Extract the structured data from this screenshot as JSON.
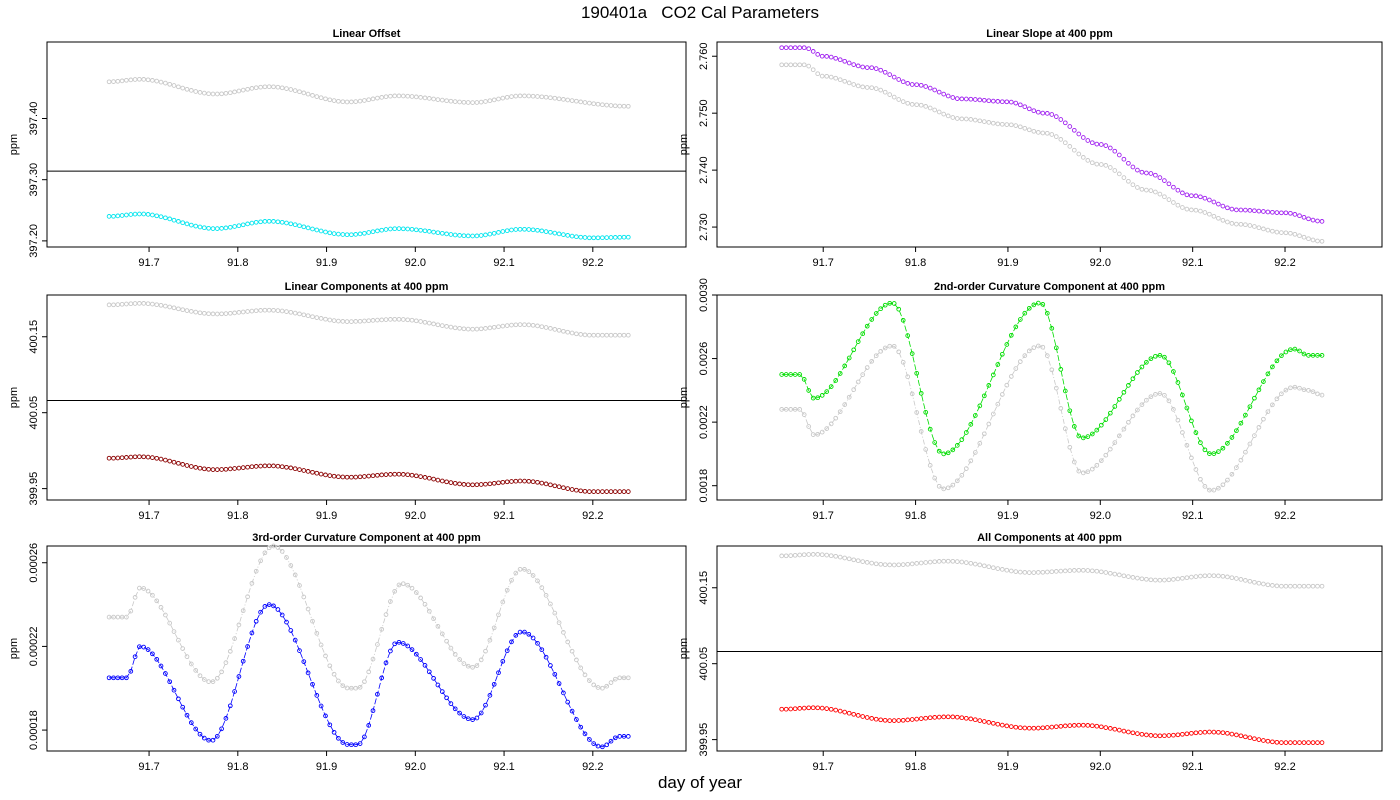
{
  "page": {
    "title": "190401a   CO2 Cal Parameters",
    "xlabel": "day of year"
  },
  "colors": {
    "reference": "#c8c8c8",
    "offset": "#00e5ee",
    "slope": "#a020f0",
    "linear": "#8b0000",
    "curv2": "#00dd00",
    "curv3": "#0000ff",
    "all": "#ff0000",
    "hline": "#000000"
  },
  "chart_data": [
    {
      "type": "scatter",
      "title": "Linear Offset",
      "ylabel": "ppm",
      "xlim": [
        91.585,
        92.305
      ],
      "ylim": [
        397.19,
        397.525
      ],
      "xticks": [
        "91.7",
        "91.8",
        "91.9",
        "92.0",
        "92.1",
        "92.2"
      ],
      "yticks": [
        "397.20",
        "397.30",
        "397.40"
      ],
      "hline": 397.314,
      "x_start": 91.655,
      "x_end": 92.24,
      "n_points": 121,
      "series": [
        {
          "role": "reference",
          "connect": false,
          "knots": [
            [
              91.655,
              397.46
            ],
            [
              91.69,
              397.464
            ],
            [
              91.775,
              397.44
            ],
            [
              91.835,
              397.452
            ],
            [
              91.925,
              397.427
            ],
            [
              91.98,
              397.437
            ],
            [
              92.065,
              397.426
            ],
            [
              92.12,
              397.437
            ],
            [
              92.24,
              397.42
            ]
          ]
        },
        {
          "role": "offset",
          "connect": false,
          "knots": [
            [
              91.655,
              397.24
            ],
            [
              91.69,
              397.244
            ],
            [
              91.775,
              397.22
            ],
            [
              91.835,
              397.232
            ],
            [
              91.925,
              397.21
            ],
            [
              91.98,
              397.22
            ],
            [
              92.065,
              397.208
            ],
            [
              92.12,
              397.219
            ],
            [
              92.2,
              397.205
            ],
            [
              92.24,
              397.206
            ]
          ]
        }
      ]
    },
    {
      "type": "scatter",
      "title": "Linear Slope at 400 ppm",
      "ylabel": "ppm",
      "xlim": [
        91.585,
        92.305
      ],
      "ylim": [
        2.7265,
        2.7625
      ],
      "xticks": [
        "91.7",
        "91.8",
        "91.9",
        "92.0",
        "92.1",
        "92.2"
      ],
      "yticks": [
        "2.730",
        "2.740",
        "2.750",
        "2.760"
      ],
      "x_start": 91.655,
      "x_end": 92.24,
      "n_points": 121,
      "series": [
        {
          "role": "reference",
          "connect": false,
          "knots": [
            [
              91.655,
              2.7585
            ],
            [
              91.68,
              2.7585
            ],
            [
              91.7,
              2.7565
            ],
            [
              91.75,
              2.7545
            ],
            [
              91.8,
              2.7515
            ],
            [
              91.85,
              2.749
            ],
            [
              91.9,
              2.748
            ],
            [
              91.94,
              2.7465
            ],
            [
              92.0,
              2.741
            ],
            [
              92.05,
              2.7365
            ],
            [
              92.1,
              2.733
            ],
            [
              92.15,
              2.7305
            ],
            [
              92.2,
              2.729
            ],
            [
              92.24,
              2.7275
            ]
          ]
        },
        {
          "role": "slope",
          "connect": false,
          "knots": [
            [
              91.655,
              2.7615
            ],
            [
              91.68,
              2.7615
            ],
            [
              91.7,
              2.76
            ],
            [
              91.75,
              2.758
            ],
            [
              91.8,
              2.755
            ],
            [
              91.85,
              2.7525
            ],
            [
              91.9,
              2.752
            ],
            [
              91.94,
              2.75
            ],
            [
              92.0,
              2.7445
            ],
            [
              92.05,
              2.7395
            ],
            [
              92.1,
              2.7355
            ],
            [
              92.15,
              2.733
            ],
            [
              92.2,
              2.7325
            ],
            [
              92.24,
              2.731
            ]
          ]
        }
      ]
    },
    {
      "type": "scatter",
      "title": "Linear Components at 400 ppm",
      "ylabel": "ppm",
      "xlim": [
        91.585,
        92.305
      ],
      "ylim": [
        399.935,
        400.205
      ],
      "xticks": [
        "91.7",
        "91.8",
        "91.9",
        "92.0",
        "92.1",
        "92.2"
      ],
      "yticks": [
        "399.95",
        "400.05",
        "400.15"
      ],
      "hline": 400.066,
      "x_start": 91.655,
      "x_end": 92.24,
      "n_points": 121,
      "series": [
        {
          "role": "reference",
          "connect": false,
          "knots": [
            [
              91.655,
              400.192
            ],
            [
              91.69,
              400.194
            ],
            [
              91.775,
              400.18
            ],
            [
              91.835,
              400.185
            ],
            [
              91.925,
              400.17
            ],
            [
              91.98,
              400.173
            ],
            [
              92.065,
              400.16
            ],
            [
              92.12,
              400.166
            ],
            [
              92.2,
              400.152
            ],
            [
              92.24,
              400.152
            ]
          ]
        },
        {
          "role": "linear",
          "connect": false,
          "knots": [
            [
              91.655,
              399.99
            ],
            [
              91.69,
              399.992
            ],
            [
              91.775,
              399.975
            ],
            [
              91.835,
              399.98
            ],
            [
              91.925,
              399.965
            ],
            [
              91.98,
              399.969
            ],
            [
              92.065,
              399.955
            ],
            [
              92.12,
              399.96
            ],
            [
              92.2,
              399.946
            ],
            [
              92.24,
              399.946
            ]
          ]
        }
      ]
    },
    {
      "type": "line",
      "title": "2nd-order Curvature Component at 400 ppm",
      "ylabel": "ppm",
      "xlim": [
        91.585,
        92.305
      ],
      "ylim": [
        0.00171,
        0.003
      ],
      "xticks": [
        "91.7",
        "91.8",
        "91.9",
        "92.0",
        "92.1",
        "92.2"
      ],
      "yticks": [
        "0.0018",
        "0.0022",
        "0.0026",
        "0.0030"
      ],
      "x_start": 91.655,
      "x_end": 92.24,
      "n_points": 121,
      "series": [
        {
          "role": "reference",
          "connect": true,
          "knots": [
            [
              91.655,
              0.00228
            ],
            [
              91.665,
              0.00228
            ],
            [
              91.675,
              0.00228
            ],
            [
              91.69,
              0.00212
            ],
            [
              91.775,
              0.00268
            ],
            [
              91.83,
              0.00178
            ],
            [
              91.935,
              0.00268
            ],
            [
              91.98,
              0.00188
            ],
            [
              92.065,
              0.00238
            ],
            [
              92.12,
              0.00177
            ],
            [
              92.21,
              0.00242
            ],
            [
              92.225,
              0.0024
            ],
            [
              92.24,
              0.00237
            ]
          ]
        },
        {
          "role": "curv2",
          "connect": true,
          "knots": [
            [
              91.655,
              0.0025
            ],
            [
              91.665,
              0.0025
            ],
            [
              91.675,
              0.0025
            ],
            [
              91.69,
              0.00235
            ],
            [
              91.775,
              0.00295
            ],
            [
              91.83,
              0.002
            ],
            [
              91.935,
              0.00295
            ],
            [
              91.98,
              0.0021
            ],
            [
              92.065,
              0.00262
            ],
            [
              92.12,
              0.002
            ],
            [
              92.21,
              0.00266
            ],
            [
              92.225,
              0.00262
            ],
            [
              92.24,
              0.00262
            ]
          ]
        }
      ]
    },
    {
      "type": "line",
      "title": "3rd-order Curvature Component at 400 ppm",
      "ylabel": "ppm",
      "xlim": [
        91.585,
        92.305
      ],
      "ylim": [
        0.00017,
        0.000268
      ],
      "xticks": [
        "91.7",
        "91.8",
        "91.9",
        "92.0",
        "92.1",
        "92.2"
      ],
      "yticks": [
        "0.00018",
        "0.00022",
        "0.00026"
      ],
      "x_start": 91.655,
      "x_end": 92.24,
      "n_points": 121,
      "series": [
        {
          "role": "reference",
          "connect": true,
          "knots": [
            [
              91.655,
              0.000234
            ],
            [
              91.665,
              0.000234
            ],
            [
              91.675,
              0.000234
            ],
            [
              91.69,
              0.000248
            ],
            [
              91.77,
              0.000203
            ],
            [
              91.84,
              0.000268
            ],
            [
              91.925,
              0.0002
            ],
            [
              91.935,
              0.0002
            ],
            [
              91.985,
              0.00025
            ],
            [
              92.065,
              0.00021
            ],
            [
              92.12,
              0.000257
            ],
            [
              92.21,
              0.0002
            ],
            [
              92.23,
              0.000205
            ],
            [
              92.24,
              0.000205
            ]
          ]
        },
        {
          "role": "curv3",
          "connect": true,
          "knots": [
            [
              91.655,
              0.000205
            ],
            [
              91.665,
              0.000205
            ],
            [
              91.675,
              0.000205
            ],
            [
              91.69,
              0.00022
            ],
            [
              91.77,
              0.000175
            ],
            [
              91.835,
              0.00024
            ],
            [
              91.925,
              0.000173
            ],
            [
              91.935,
              0.000173
            ],
            [
              91.98,
              0.000222
            ],
            [
              92.065,
              0.000185
            ],
            [
              92.12,
              0.000227
            ],
            [
              92.21,
              0.000172
            ],
            [
              92.23,
              0.000177
            ],
            [
              92.24,
              0.000177
            ]
          ]
        }
      ]
    },
    {
      "type": "scatter",
      "title": "All Components at 400 ppm",
      "ylabel": "ppm",
      "xlim": [
        91.585,
        92.305
      ],
      "ylim": [
        399.935,
        400.205
      ],
      "xticks": [
        "91.7",
        "91.8",
        "91.9",
        "92.0",
        "92.1",
        "92.2"
      ],
      "yticks": [
        "399.95",
        "400.05",
        "400.15"
      ],
      "hline": 400.066,
      "x_start": 91.655,
      "x_end": 92.24,
      "n_points": 121,
      "series": [
        {
          "role": "reference",
          "connect": false,
          "knots": [
            [
              91.655,
              400.192
            ],
            [
              91.69,
              400.194
            ],
            [
              91.775,
              400.18
            ],
            [
              91.835,
              400.185
            ],
            [
              91.925,
              400.17
            ],
            [
              91.98,
              400.173
            ],
            [
              92.065,
              400.16
            ],
            [
              92.12,
              400.166
            ],
            [
              92.2,
              400.152
            ],
            [
              92.24,
              400.152
            ]
          ]
        },
        {
          "role": "all",
          "connect": false,
          "knots": [
            [
              91.655,
              399.99
            ],
            [
              91.69,
              399.992
            ],
            [
              91.775,
              399.975
            ],
            [
              91.835,
              399.98
            ],
            [
              91.925,
              399.965
            ],
            [
              91.98,
              399.969
            ],
            [
              92.065,
              399.955
            ],
            [
              92.12,
              399.96
            ],
            [
              92.2,
              399.946
            ],
            [
              92.24,
              399.946
            ]
          ]
        }
      ]
    }
  ]
}
